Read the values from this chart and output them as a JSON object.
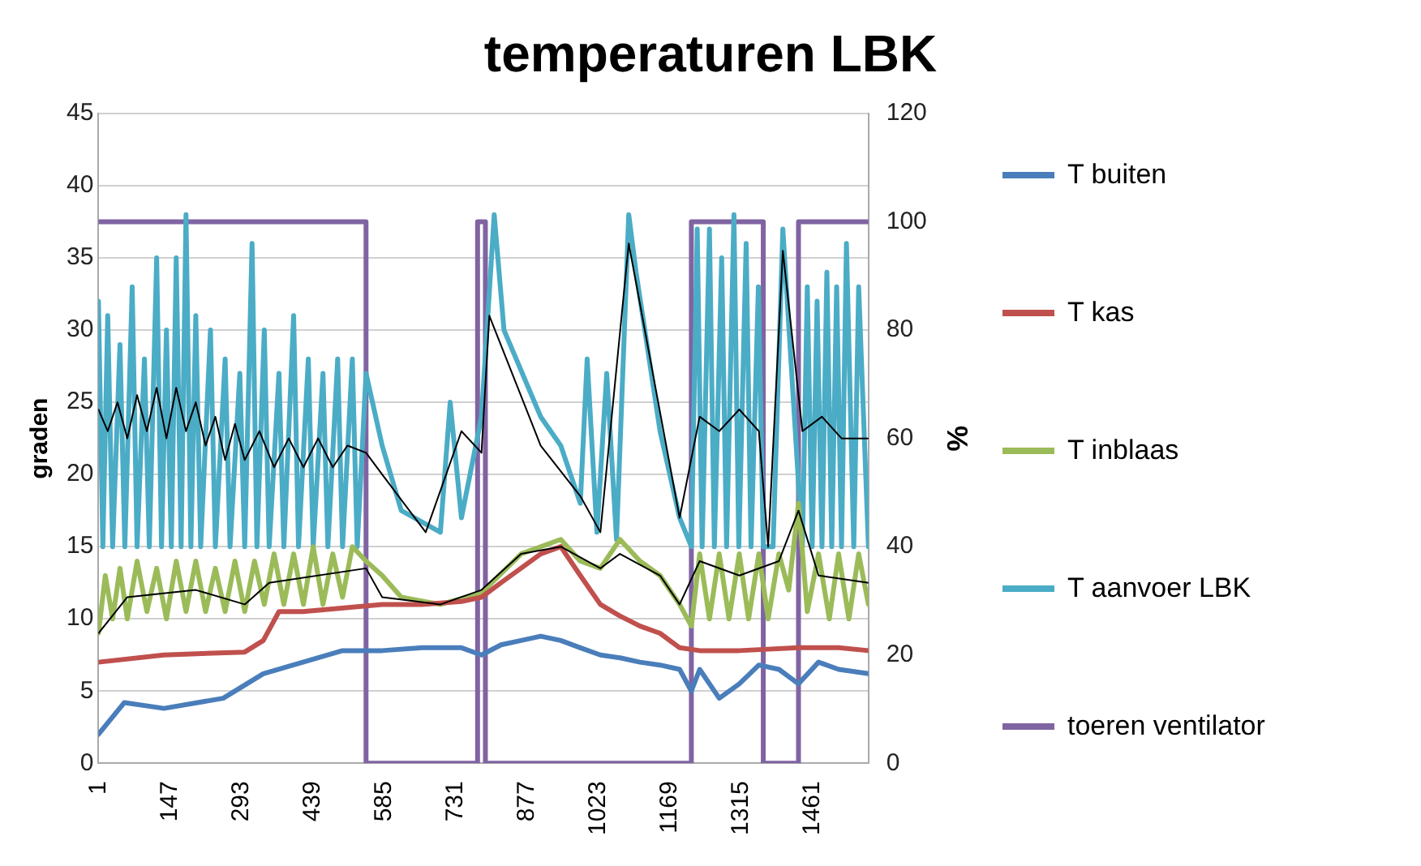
{
  "chart_data": {
    "type": "line",
    "title": "temperaturen LBK",
    "ylabel": "graden",
    "y2label": "%",
    "xlim": [
      1,
      1575
    ],
    "xticks": [
      1,
      147,
      293,
      439,
      585,
      731,
      877,
      1023,
      1169,
      1315,
      1461
    ],
    "ylim": [
      0,
      45
    ],
    "yticks": [
      0,
      5,
      10,
      15,
      20,
      25,
      30,
      35,
      40,
      45
    ],
    "y2lim": [
      0,
      120
    ],
    "y2ticks": [
      0,
      20,
      40,
      60,
      80,
      100,
      120
    ],
    "grid": "y",
    "legend": "right",
    "marker": "none",
    "line_style": "solid",
    "series": [
      {
        "name": "T buiten",
        "color": "#4a7ebb",
        "x": [
          1,
          54,
          135,
          256,
          338,
          419,
          500,
          581,
          662,
          743,
          784,
          824,
          865,
          905,
          946,
          986,
          1027,
          1067,
          1108,
          1149,
          1189,
          1213,
          1230,
          1270,
          1311,
          1351,
          1392,
          1432,
          1473,
          1514,
          1575
        ],
        "values": [
          2,
          4.2,
          3.8,
          4.5,
          6.2,
          7,
          7.8,
          7.8,
          8,
          8,
          7.5,
          8.2,
          8.5,
          8.8,
          8.5,
          8,
          7.5,
          7.3,
          7,
          6.8,
          6.5,
          5,
          6.5,
          4.5,
          5.5,
          6.8,
          6.5,
          5.5,
          7,
          6.5,
          6.2
        ]
      },
      {
        "name": "T kas",
        "color": "#c0504d",
        "x": [
          1,
          135,
          300,
          338,
          370,
          419,
          581,
          662,
          743,
          784,
          824,
          905,
          946,
          986,
          1027,
          1067,
          1108,
          1149,
          1189,
          1230,
          1311,
          1432,
          1514,
          1575
        ],
        "values": [
          7,
          7.5,
          7.7,
          8.5,
          10.5,
          10.5,
          11,
          11,
          11.2,
          11.5,
          12.5,
          14.5,
          15,
          13,
          11,
          10.2,
          9.5,
          9,
          8,
          7.8,
          7.8,
          8,
          8,
          7.8
        ]
      },
      {
        "name": "T inblaas",
        "color": "#9bbb59",
        "x": [
          1,
          15,
          30,
          45,
          60,
          80,
          100,
          120,
          140,
          160,
          180,
          200,
          220,
          240,
          260,
          280,
          300,
          320,
          340,
          360,
          380,
          400,
          420,
          440,
          460,
          480,
          500,
          520,
          548,
          581,
          620,
          700,
          784,
          865,
          946,
          986,
          1027,
          1067,
          1108,
          1149,
          1189,
          1213,
          1230,
          1250,
          1270,
          1290,
          1311,
          1330,
          1351,
          1370,
          1392,
          1412,
          1432,
          1450,
          1473,
          1495,
          1514,
          1535,
          1555,
          1575
        ],
        "values": [
          9,
          13,
          10,
          13.5,
          10,
          14,
          10.5,
          13.5,
          10,
          14,
          10.5,
          14,
          10.5,
          13.5,
          10.5,
          14,
          10.5,
          14,
          11,
          14.5,
          11,
          14.5,
          11,
          15,
          11,
          14.5,
          11.5,
          15,
          14,
          13,
          11.5,
          11,
          11.8,
          14.5,
          15.5,
          14,
          13.5,
          15.5,
          14,
          13,
          11,
          9.5,
          14.5,
          10,
          14.5,
          10,
          14.5,
          10,
          14.5,
          10,
          14.5,
          12,
          18,
          10.5,
          14.5,
          10,
          14.5,
          10,
          14.5,
          11
        ]
      },
      {
        "name": "T aanvoer LBK",
        "color": "#4bacc6",
        "x": [
          1,
          10,
          20,
          30,
          45,
          55,
          70,
          80,
          95,
          105,
          120,
          130,
          140,
          150,
          160,
          170,
          180,
          190,
          200,
          210,
          230,
          240,
          260,
          270,
          290,
          300,
          315,
          325,
          340,
          350,
          370,
          380,
          400,
          410,
          430,
          440,
          460,
          470,
          490,
          500,
          520,
          530,
          548,
          581,
          620,
          700,
          720,
          743,
          784,
          810,
          830,
          905,
          946,
          986,
          1000,
          1020,
          1040,
          1060,
          1085,
          1100,
          1149,
          1189,
          1213,
          1225,
          1235,
          1250,
          1260,
          1275,
          1285,
          1300,
          1310,
          1325,
          1335,
          1350,
          1360,
          1380,
          1400,
          1420,
          1440,
          1450,
          1460,
          1470,
          1480,
          1490,
          1500,
          1510,
          1520,
          1530,
          1545,
          1555,
          1575
        ],
        "values": [
          32,
          15,
          31,
          15,
          29,
          15,
          33,
          15,
          28,
          15,
          35,
          15,
          30,
          15,
          35,
          15,
          38,
          15,
          31,
          15,
          30,
          15,
          28,
          15,
          27,
          15,
          36,
          15,
          30,
          15,
          27,
          15,
          31,
          15,
          28,
          15,
          27,
          15,
          28,
          15,
          28,
          15,
          27,
          22,
          17.5,
          16,
          25,
          17,
          24,
          38,
          30,
          24,
          22,
          18,
          28,
          16,
          27,
          15.5,
          38,
          34,
          23,
          17,
          15,
          37,
          15,
          37,
          15,
          35,
          15,
          38,
          15,
          36,
          15,
          33,
          15,
          15,
          37,
          26,
          15,
          33,
          15,
          32,
          15,
          34,
          15,
          33,
          15,
          36,
          15,
          33,
          15
        ]
      },
      {
        "color": "#000000",
        "x": [
          1,
          20,
          40,
          60,
          80,
          100,
          120,
          140,
          160,
          180,
          200,
          220,
          240,
          260,
          280,
          300,
          330,
          360,
          390,
          420,
          450,
          480,
          510,
          548,
          581,
          670,
          743,
          784,
          800,
          905,
          986,
          1027,
          1085,
          1189,
          1230,
          1270,
          1311,
          1351,
          1370,
          1400,
          1440,
          1480,
          1520,
          1575
        ],
        "values": [
          24.5,
          23,
          25,
          22.5,
          25.5,
          23,
          26,
          22.5,
          26,
          23,
          25,
          22,
          24,
          21,
          23.5,
          21,
          23,
          20.5,
          22.5,
          20.5,
          22.5,
          20.5,
          22,
          21.5,
          20,
          16,
          23,
          21.5,
          31,
          22,
          18.5,
          16,
          36,
          17,
          24,
          23,
          24.5,
          23,
          15,
          35.5,
          23,
          24,
          22.5,
          22.5
        ]
      },
      {
        "color": "#000000",
        "x": [
          1,
          60,
          200,
          300,
          350,
          548,
          581,
          700,
          784,
          865,
          946,
          1027,
          1067,
          1149,
          1189,
          1230,
          1311,
          1392,
          1432,
          1473,
          1575
        ],
        "values": [
          9,
          11.5,
          12,
          11,
          12.5,
          13.5,
          11.5,
          11,
          12,
          14.5,
          15,
          13.5,
          14.5,
          13,
          11,
          14,
          13,
          14,
          17.5,
          13,
          12.5
        ]
      },
      {
        "name": "toeren ventilator",
        "color": "#8064a2",
        "axis": "y2",
        "x": [
          1,
          548,
          548,
          776,
          776,
          792,
          792,
          1213,
          1213,
          1360,
          1360,
          1432,
          1432,
          1575
        ],
        "values": [
          100,
          100,
          0,
          0,
          100,
          100,
          0,
          0,
          100,
          100,
          0,
          0,
          100,
          100
        ]
      }
    ]
  }
}
